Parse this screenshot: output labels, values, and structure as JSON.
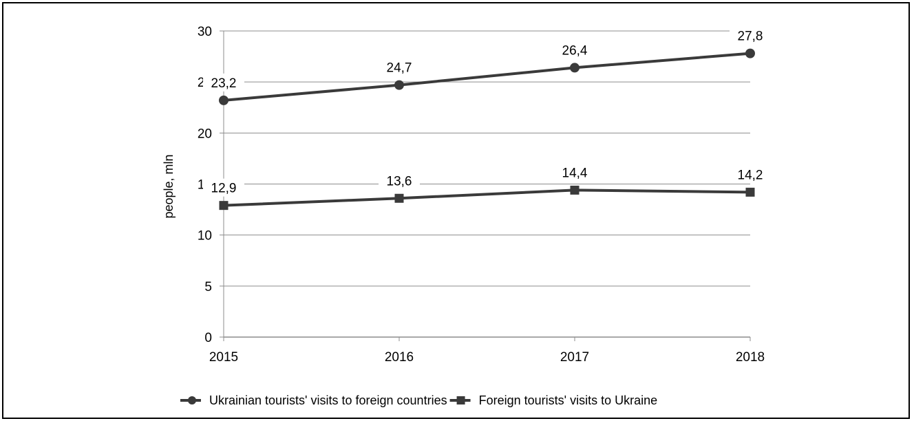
{
  "chart_data": {
    "type": "line",
    "title": "",
    "xlabel": "",
    "ylabel": "people, mln",
    "categories": [
      "2015",
      "2016",
      "2017",
      "2018"
    ],
    "ylim": [
      0,
      30
    ],
    "yticks": [
      0,
      5,
      10,
      15,
      20,
      25,
      30
    ],
    "ytick_labels": [
      "0",
      "5",
      "10",
      "15",
      "20",
      "25",
      "30"
    ],
    "grid": "horizontal",
    "legend_position": "bottom",
    "series": [
      {
        "name": "Ukrainian tourists' visits to foreign countries",
        "marker": "circle",
        "color": "#3a3a3a",
        "values": [
          23.2,
          24.7,
          26.4,
          27.8
        ],
        "labels": [
          "23,2",
          "24,7",
          "26,4",
          "27,8"
        ]
      },
      {
        "name": "Foreign tourists' visits to Ukraine",
        "marker": "square",
        "color": "#3a3a3a",
        "values": [
          12.9,
          13.6,
          14.4,
          14.2
        ],
        "labels": [
          "12,9",
          "13,6",
          "14,4",
          "14,2"
        ]
      }
    ]
  }
}
